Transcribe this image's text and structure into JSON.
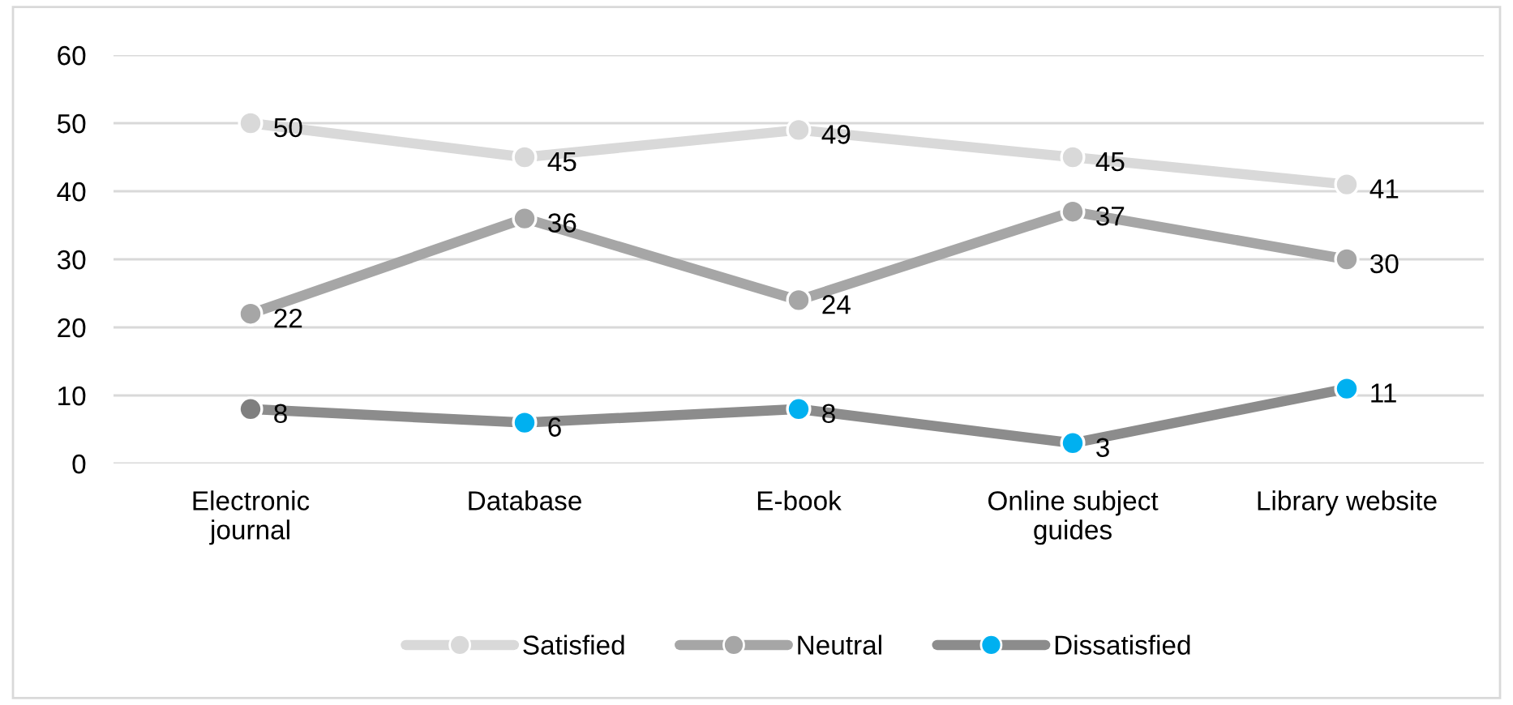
{
  "chart_data": {
    "type": "line",
    "categories": [
      "Electronic\njournal",
      "Database",
      "E-book",
      "Online subject\nguides",
      "Library website"
    ],
    "series": [
      {
        "name": "Satisfied",
        "color": "#d9d9d9",
        "values": [
          50,
          45,
          49,
          45,
          41
        ]
      },
      {
        "name": "Neutral",
        "color": "#a6a6a6",
        "values": [
          22,
          36,
          24,
          37,
          30
        ]
      },
      {
        "name": "Dissatisfied",
        "color": "#8c8c8c",
        "colors": [
          "#7f7f7f",
          "#00b0f0",
          "#00b0f0",
          "#00b0f0",
          "#00b0f0"
        ],
        "values": [
          8,
          6,
          8,
          3,
          11
        ]
      }
    ],
    "ylim": [
      0,
      60
    ],
    "yticks": [
      0,
      10,
      20,
      30,
      40,
      50,
      60
    ],
    "grid": "y",
    "legend": "bottom",
    "marker": "circle",
    "line_style": "solid",
    "data_labels": true
  }
}
